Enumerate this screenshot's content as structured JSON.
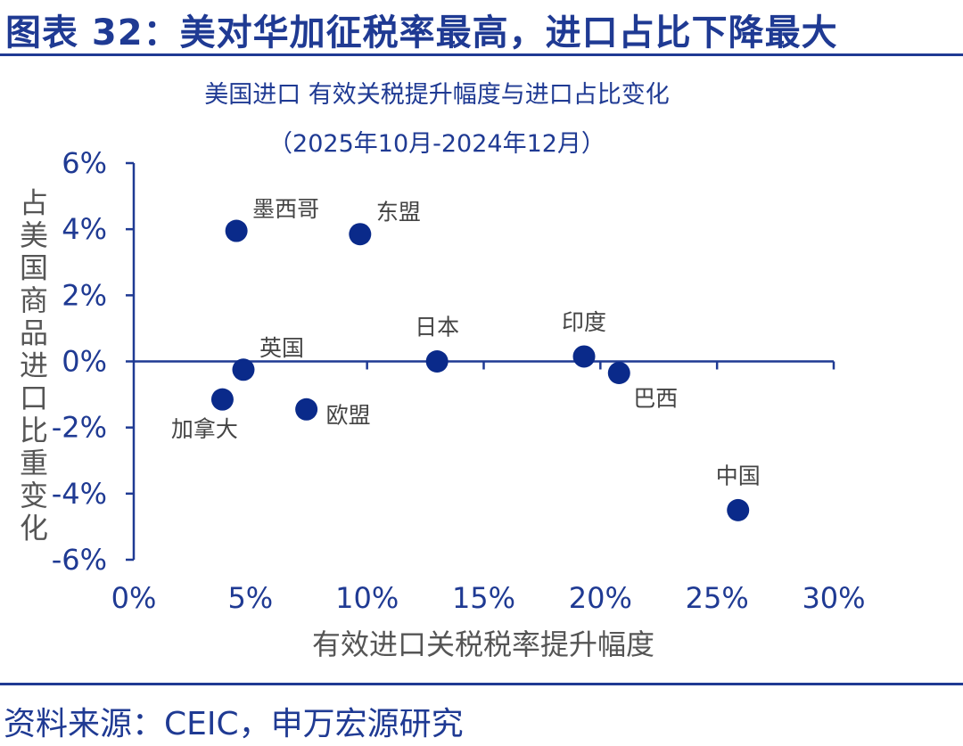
{
  "figure": {
    "title": "图表 32：美对华加征税率最高，进口占比下降最大",
    "source": "资料来源：CEIC，申万宏源研究"
  },
  "colors": {
    "accent": "#1f3a93",
    "point": "#0a2a8a",
    "text": "#444444"
  },
  "chart_data": {
    "type": "scatter",
    "title": "美国进口 有效关税提升幅度与进口占比变化",
    "subtitle": "（2025年10月-2024年12月）",
    "xlabel": "有效进口关税税率提升幅度",
    "ylabel": "占美国商品进口比重变化",
    "xlim": [
      0,
      30
    ],
    "ylim": [
      -6,
      6
    ],
    "xticks": [
      0,
      5,
      10,
      15,
      20,
      25,
      30
    ],
    "yticks": [
      6,
      4,
      2,
      0,
      -2,
      -4,
      -6
    ],
    "xtick_labels": [
      "0%",
      "5%",
      "10%",
      "15%",
      "20%",
      "25%",
      "30%"
    ],
    "ytick_labels": [
      "6%",
      "4%",
      "2%",
      "0%",
      "-2%",
      "-4%",
      "-6%"
    ],
    "points": [
      {
        "name": "墨西哥",
        "x": 4.4,
        "y": 3.95,
        "label_pos": "upper-right"
      },
      {
        "name": "东盟",
        "x": 9.7,
        "y": 3.85,
        "label_pos": "upper-right"
      },
      {
        "name": "日本",
        "x": 13.0,
        "y": 0.0,
        "label_pos": "above"
      },
      {
        "name": "印度",
        "x": 19.3,
        "y": 0.15,
        "label_pos": "above"
      },
      {
        "name": "巴西",
        "x": 20.8,
        "y": -0.35,
        "label_pos": "lower-right"
      },
      {
        "name": "英国",
        "x": 4.7,
        "y": -0.25,
        "label_pos": "upper-right"
      },
      {
        "name": "加拿大",
        "x": 3.8,
        "y": -1.15,
        "label_pos": "below"
      },
      {
        "name": "欧盟",
        "x": 7.4,
        "y": -1.45,
        "label_pos": "right"
      },
      {
        "name": "中国",
        "x": 25.9,
        "y": -4.5,
        "label_pos": "above"
      }
    ]
  }
}
